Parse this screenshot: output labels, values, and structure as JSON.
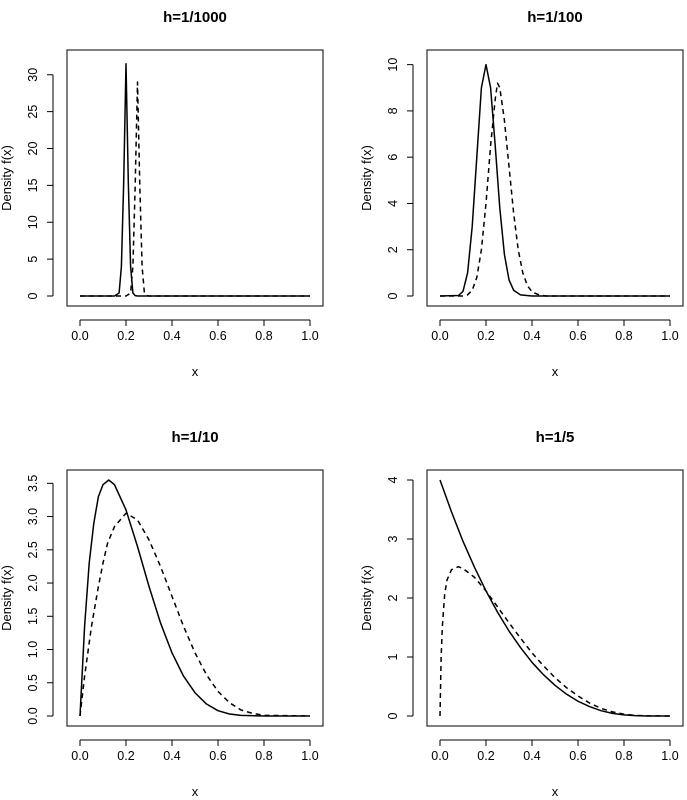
{
  "chart_data": [
    {
      "type": "line",
      "title": "h=1/1000",
      "xlabel": "x",
      "ylabel": "Density f(x)",
      "xlim": [
        0,
        1
      ],
      "ylim": [
        0,
        32
      ],
      "xticks": [
        "0.0",
        "0.2",
        "0.4",
        "0.6",
        "0.8",
        "1.0"
      ],
      "xtick_values": [
        0,
        0.2,
        0.4,
        0.6,
        0.8,
        1.0
      ],
      "yticks": [
        "0",
        "5",
        "10",
        "15",
        "20",
        "25",
        "30"
      ],
      "ytick_values": [
        0,
        5,
        10,
        15,
        20,
        25,
        30
      ],
      "series": [
        {
          "style": "solid",
          "x": [
            0.0,
            0.15,
            0.17,
            0.18,
            0.19,
            0.2,
            0.21,
            0.22,
            0.23,
            0.24,
            0.25,
            0.3,
            1.0
          ],
          "y": [
            0,
            0,
            0.4,
            4.0,
            15.5,
            31.5,
            15.5,
            4.0,
            0.4,
            0.05,
            0,
            0,
            0
          ]
        },
        {
          "style": "dashed",
          "x": [
            0.0,
            0.2,
            0.22,
            0.23,
            0.24,
            0.25,
            0.26,
            0.27,
            0.28,
            0.29,
            0.3,
            1.0
          ],
          "y": [
            0,
            0,
            0.4,
            4.0,
            15.0,
            29.0,
            15.0,
            4.0,
            0.4,
            0.05,
            0,
            0
          ]
        }
      ]
    },
    {
      "type": "line",
      "title": "h=1/100",
      "xlabel": "x",
      "ylabel": "Density f(x)",
      "xlim": [
        0,
        1
      ],
      "ylim": [
        0,
        10.2
      ],
      "xticks": [
        "0.0",
        "0.2",
        "0.4",
        "0.6",
        "0.8",
        "1.0"
      ],
      "xtick_values": [
        0,
        0.2,
        0.4,
        0.6,
        0.8,
        1.0
      ],
      "yticks": [
        "0",
        "2",
        "4",
        "6",
        "8",
        "10"
      ],
      "ytick_values": [
        0,
        2,
        4,
        6,
        8,
        10
      ],
      "series": [
        {
          "style": "solid",
          "x": [
            0.0,
            0.08,
            0.1,
            0.12,
            0.14,
            0.16,
            0.18,
            0.2,
            0.22,
            0.24,
            0.26,
            0.28,
            0.3,
            0.32,
            0.35,
            0.4,
            1.0
          ],
          "y": [
            0,
            0.02,
            0.2,
            1.0,
            3.0,
            6.0,
            9.0,
            10.0,
            9.0,
            6.5,
            3.8,
            1.8,
            0.7,
            0.25,
            0.05,
            0,
            0
          ]
        },
        {
          "style": "dashed",
          "x": [
            0.0,
            0.1,
            0.12,
            0.14,
            0.16,
            0.18,
            0.2,
            0.22,
            0.24,
            0.25,
            0.26,
            0.28,
            0.3,
            0.32,
            0.34,
            0.36,
            0.38,
            0.4,
            0.43,
            0.46,
            1.0
          ],
          "y": [
            0,
            0,
            0.05,
            0.25,
            0.8,
            2.0,
            4.0,
            6.5,
            8.5,
            9.2,
            9.0,
            7.6,
            5.6,
            3.6,
            2.0,
            1.0,
            0.45,
            0.18,
            0.05,
            0,
            0
          ]
        }
      ]
    },
    {
      "type": "line",
      "title": "h=1/10",
      "xlabel": "x",
      "ylabel": "Density f(x)",
      "xlim": [
        0,
        1
      ],
      "ylim": [
        0,
        3.55
      ],
      "xticks": [
        "0.0",
        "0.2",
        "0.4",
        "0.6",
        "0.8",
        "1.0"
      ],
      "xtick_values": [
        0,
        0.2,
        0.4,
        0.6,
        0.8,
        1.0
      ],
      "yticks": [
        "0.0",
        "0.5",
        "1.0",
        "1.5",
        "2.0",
        "2.5",
        "3.0",
        "3.5"
      ],
      "ytick_values": [
        0,
        0.5,
        1,
        1.5,
        2,
        2.5,
        3,
        3.5
      ],
      "series": [
        {
          "style": "solid",
          "x": [
            0.0,
            0.02,
            0.04,
            0.06,
            0.08,
            0.1,
            0.125,
            0.15,
            0.2,
            0.25,
            0.3,
            0.35,
            0.4,
            0.45,
            0.5,
            0.55,
            0.6,
            0.65,
            0.7,
            0.8,
            1.0
          ],
          "y": [
            0,
            1.35,
            2.3,
            2.9,
            3.3,
            3.48,
            3.55,
            3.48,
            3.1,
            2.55,
            1.95,
            1.4,
            0.95,
            0.6,
            0.35,
            0.18,
            0.08,
            0.03,
            0.01,
            0,
            0
          ]
        },
        {
          "style": "dashed",
          "x": [
            0.0,
            0.02,
            0.05,
            0.08,
            0.1,
            0.12,
            0.15,
            0.2,
            0.25,
            0.3,
            0.35,
            0.4,
            0.45,
            0.5,
            0.55,
            0.6,
            0.65,
            0.7,
            0.75,
            0.8,
            1.0
          ],
          "y": [
            0,
            0.6,
            1.35,
            1.95,
            2.3,
            2.6,
            2.85,
            3.05,
            2.95,
            2.65,
            2.25,
            1.8,
            1.35,
            0.95,
            0.62,
            0.37,
            0.2,
            0.09,
            0.04,
            0.01,
            0
          ]
        }
      ]
    },
    {
      "type": "line",
      "title": "h=1/5",
      "xlabel": "x",
      "ylabel": "Density f(x)",
      "xlim": [
        0,
        1
      ],
      "ylim": [
        0,
        4.0
      ],
      "xticks": [
        "0.0",
        "0.2",
        "0.4",
        "0.6",
        "0.8",
        "1.0"
      ],
      "xtick_values": [
        0,
        0.2,
        0.4,
        0.6,
        0.8,
        1.0
      ],
      "yticks": [
        "0",
        "1",
        "2",
        "3",
        "4"
      ],
      "ytick_values": [
        0,
        1,
        2,
        3,
        4
      ],
      "series": [
        {
          "style": "solid",
          "x": [
            0.0,
            0.05,
            0.1,
            0.15,
            0.2,
            0.25,
            0.3,
            0.35,
            0.4,
            0.45,
            0.5,
            0.55,
            0.6,
            0.65,
            0.7,
            0.75,
            0.8,
            0.85,
            0.9,
            0.95,
            1.0
          ],
          "y": [
            4.0,
            3.46,
            2.96,
            2.52,
            2.12,
            1.76,
            1.44,
            1.16,
            0.91,
            0.7,
            0.52,
            0.37,
            0.25,
            0.16,
            0.09,
            0.045,
            0.02,
            0.006,
            0.001,
            0,
            0
          ]
        },
        {
          "style": "dashed",
          "x": [
            0.0,
            0.005,
            0.01,
            0.02,
            0.03,
            0.05,
            0.08,
            0.1,
            0.15,
            0.2,
            0.25,
            0.3,
            0.35,
            0.4,
            0.45,
            0.5,
            0.55,
            0.6,
            0.65,
            0.7,
            0.75,
            0.8,
            0.85,
            0.9,
            1.0
          ],
          "y": [
            0,
            1.0,
            1.5,
            2.05,
            2.3,
            2.48,
            2.53,
            2.5,
            2.35,
            2.12,
            1.85,
            1.58,
            1.32,
            1.07,
            0.85,
            0.65,
            0.48,
            0.34,
            0.22,
            0.13,
            0.07,
            0.03,
            0.01,
            0.003,
            0
          ]
        }
      ]
    }
  ]
}
